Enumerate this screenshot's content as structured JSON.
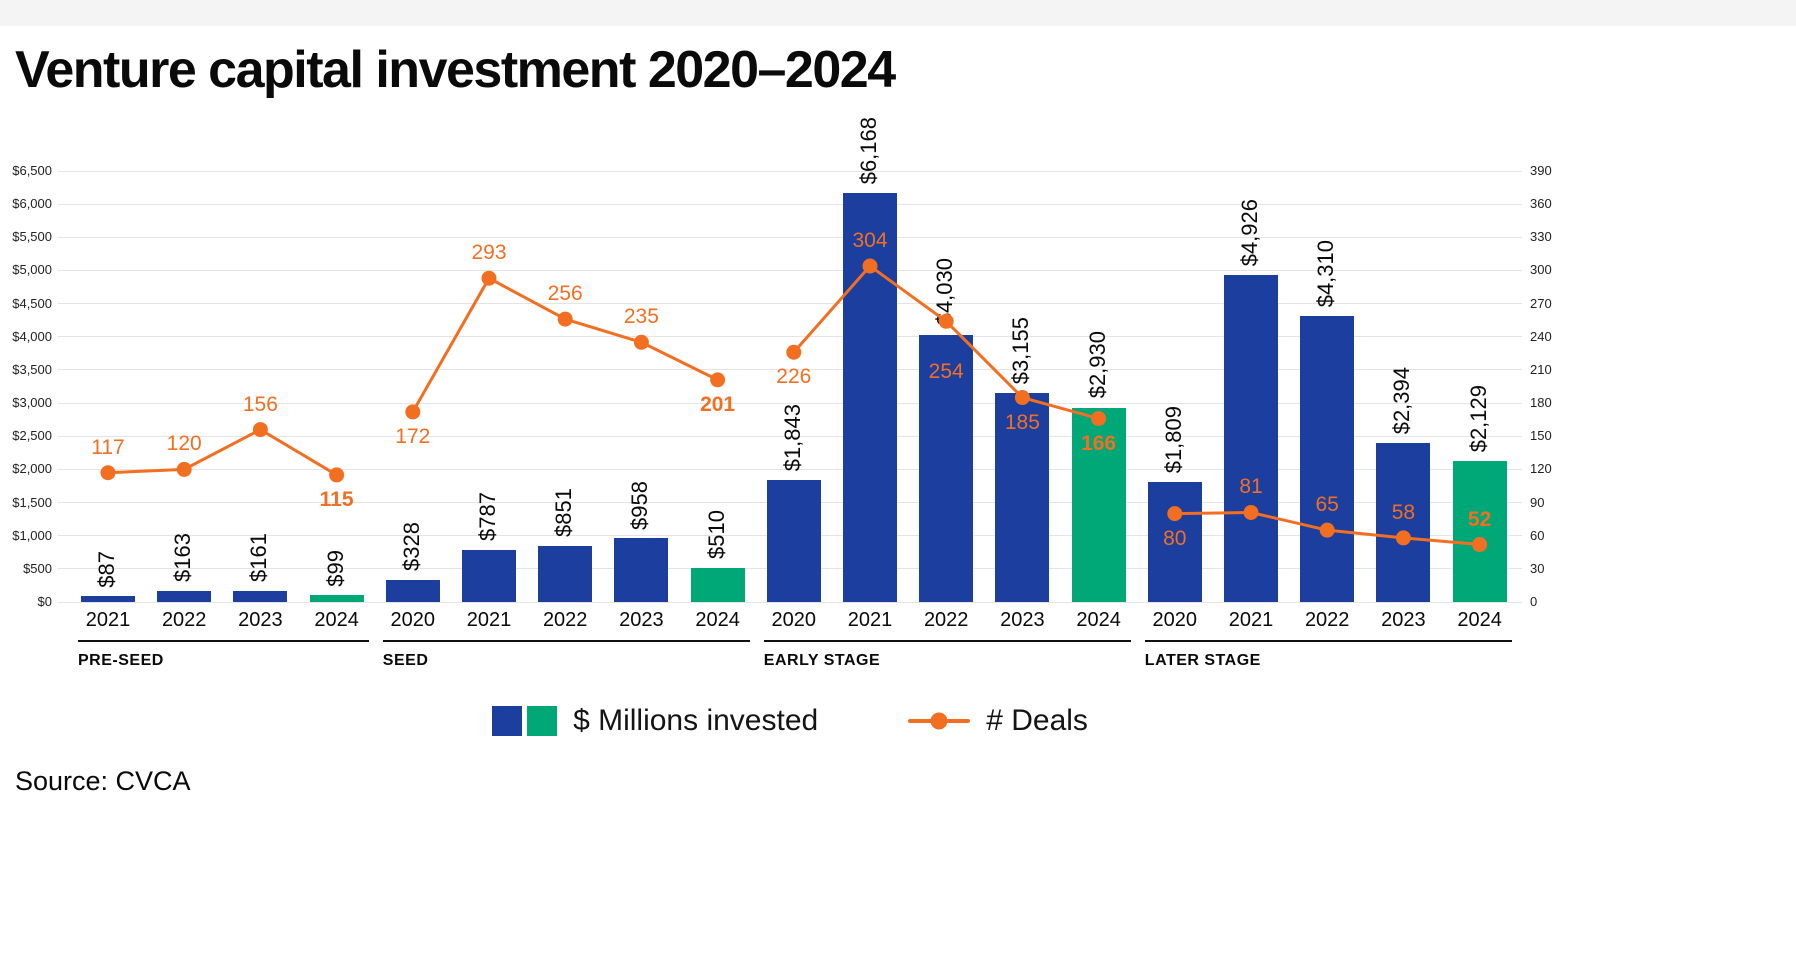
{
  "page": {
    "title": "Venture capital investment 2020–2024",
    "source": "Source: CVCA"
  },
  "legend": {
    "bars_label": "$ Millions invested",
    "line_label": "# Deals"
  },
  "colors": {
    "bar_blue": "#1b3e9f",
    "bar_green": "#00a878",
    "line_orange": "#f26f21",
    "grid": "#e4e4e4",
    "text": "#0a0a0a"
  },
  "chart_data": {
    "type": "bar",
    "title": "Venture capital investment 2020–2024",
    "grid": true,
    "legend_position": "bottom",
    "highlight_year": "2024",
    "left_axis": {
      "min": 0,
      "max": 6500,
      "step": 500,
      "tick_prefix": "$",
      "tick_labels": [
        "$0",
        "$500",
        "$1,000",
        "$1,500",
        "$2,000",
        "$2,500",
        "$3,000",
        "$3,500",
        "$4,000",
        "$4,500",
        "$5,000",
        "$5,500",
        "$6,000",
        "$6,500"
      ]
    },
    "right_axis": {
      "min": 0,
      "max": 390,
      "step": 30,
      "tick_labels": [
        "0",
        "30",
        "60",
        "90",
        "120",
        "150",
        "180",
        "210",
        "240",
        "270",
        "300",
        "330",
        "360",
        "390"
      ]
    },
    "groups": [
      {
        "label": "PRE-SEED",
        "years": [
          "2021",
          "2022",
          "2023",
          "2024"
        ],
        "invested": [
          87,
          163,
          161,
          99
        ],
        "invested_labels": [
          "$87",
          "$163",
          "$161",
          "$99"
        ],
        "deals": [
          117,
          120,
          156,
          115
        ],
        "deal_label_side": [
          "above",
          "above",
          "above",
          "below"
        ]
      },
      {
        "label": "SEED",
        "years": [
          "2020",
          "2021",
          "2022",
          "2023",
          "2024"
        ],
        "invested": [
          328,
          787,
          851,
          958,
          510
        ],
        "invested_labels": [
          "$328",
          "$787",
          "$851",
          "$958",
          "$510"
        ],
        "deals": [
          172,
          293,
          256,
          235,
          201
        ],
        "deal_label_side": [
          "below",
          "above",
          "above",
          "above",
          "below"
        ]
      },
      {
        "label": "EARLY STAGE",
        "years": [
          "2020",
          "2021",
          "2022",
          "2023",
          "2024"
        ],
        "invested": [
          1843,
          6168,
          4030,
          3155,
          2930
        ],
        "invested_labels": [
          "$1,843",
          "$6,168",
          "$4,030",
          "$3,155",
          "$2,930"
        ],
        "deals": [
          226,
          304,
          254,
          185,
          166
        ],
        "deal_label_side": [
          "below",
          "above",
          "below-far",
          "below",
          "below"
        ]
      },
      {
        "label": "LATER STAGE",
        "years": [
          "2020",
          "2021",
          "2022",
          "2023",
          "2024"
        ],
        "invested": [
          1809,
          4926,
          4310,
          2394,
          2129
        ],
        "invested_labels": [
          "$1,809",
          "$4,926",
          "$4,310",
          "$2,394",
          "$2,129"
        ],
        "deals": [
          80,
          81,
          65,
          58,
          52
        ],
        "deal_label_side": [
          "below",
          "above",
          "above",
          "above",
          "above"
        ]
      }
    ]
  }
}
